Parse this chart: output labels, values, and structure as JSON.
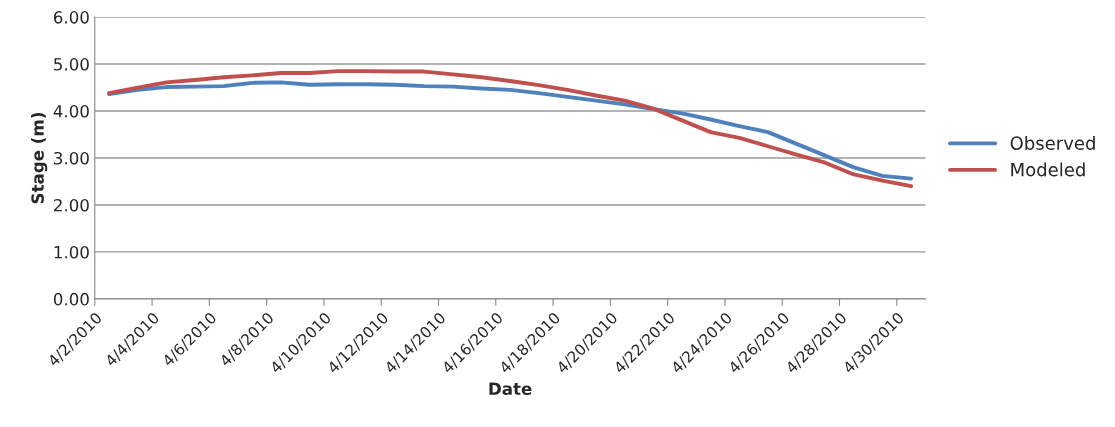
{
  "chart_data": {
    "type": "line",
    "xlabel": "Date",
    "ylabel": "Stage (m)",
    "x": [
      "2010-04-02T12:00",
      "2010-04-03T12:00",
      "2010-04-04T12:00",
      "2010-04-05T12:00",
      "2010-04-06T12:00",
      "2010-04-07T12:00",
      "2010-04-08T12:00",
      "2010-04-09T12:00",
      "2010-04-10T12:00",
      "2010-04-11T12:00",
      "2010-04-12T12:00",
      "2010-04-13T12:00",
      "2010-04-14T12:00",
      "2010-04-15T12:00",
      "2010-04-16T12:00",
      "2010-04-17T12:00",
      "2010-04-18T12:00",
      "2010-04-19T12:00",
      "2010-04-20T12:00",
      "2010-04-21T12:00",
      "2010-04-22T12:00",
      "2010-04-23T12:00",
      "2010-04-24T12:00",
      "2010-04-25T12:00",
      "2010-04-26T12:00",
      "2010-04-27T12:00",
      "2010-04-28T12:00",
      "2010-04-29T12:00",
      "2010-04-30T12:00"
    ],
    "series": [
      {
        "name": "Observed",
        "color": "#4f81bd",
        "values": [
          4.36,
          4.45,
          4.51,
          4.52,
          4.53,
          4.6,
          4.61,
          4.56,
          4.57,
          4.57,
          4.56,
          4.53,
          4.52,
          4.48,
          4.45,
          4.38,
          4.3,
          4.22,
          4.14,
          4.04,
          3.95,
          3.82,
          3.68,
          3.55,
          3.3,
          3.05,
          2.8,
          2.62,
          2.56
        ]
      },
      {
        "name": "Modeled",
        "color": "#c0504d",
        "values": [
          4.38,
          4.5,
          4.61,
          4.66,
          4.72,
          4.76,
          4.81,
          4.81,
          4.85,
          4.85,
          4.84,
          4.84,
          4.78,
          4.72,
          4.64,
          4.55,
          4.45,
          4.33,
          4.22,
          4.05,
          3.8,
          3.55,
          3.43,
          3.25,
          3.07,
          2.9,
          2.65,
          2.52,
          2.4
        ]
      }
    ],
    "xlim": [
      "2010-04-02",
      "2010-05-01"
    ],
    "xticks": [
      {
        "value": "2010-04-02",
        "label": "4/2/2010"
      },
      {
        "value": "2010-04-04",
        "label": "4/4/2010"
      },
      {
        "value": "2010-04-06",
        "label": "4/6/2010"
      },
      {
        "value": "2010-04-08",
        "label": "4/8/2010"
      },
      {
        "value": "2010-04-10",
        "label": "4/10/2010"
      },
      {
        "value": "2010-04-12",
        "label": "4/12/2010"
      },
      {
        "value": "2010-04-14",
        "label": "4/14/2010"
      },
      {
        "value": "2010-04-16",
        "label": "4/16/2010"
      },
      {
        "value": "2010-04-18",
        "label": "4/18/2010"
      },
      {
        "value": "2010-04-20",
        "label": "4/20/2010"
      },
      {
        "value": "2010-04-22",
        "label": "4/22/2010"
      },
      {
        "value": "2010-04-24",
        "label": "4/24/2010"
      },
      {
        "value": "2010-04-26",
        "label": "4/26/2010"
      },
      {
        "value": "2010-04-28",
        "label": "4/28/2010"
      },
      {
        "value": "2010-04-30",
        "label": "4/30/2010"
      }
    ],
    "ylim": [
      0,
      6
    ],
    "yticks": [
      {
        "value": 0,
        "label": "0.00"
      },
      {
        "value": 1,
        "label": "1.00"
      },
      {
        "value": 2,
        "label": "2.00"
      },
      {
        "value": 3,
        "label": "3.00"
      },
      {
        "value": 4,
        "label": "4.00"
      },
      {
        "value": 5,
        "label": "5.00"
      },
      {
        "value": 6,
        "label": "6.00"
      }
    ],
    "grid": "y",
    "legend": "right",
    "marker": "none",
    "line_style": "solid"
  }
}
